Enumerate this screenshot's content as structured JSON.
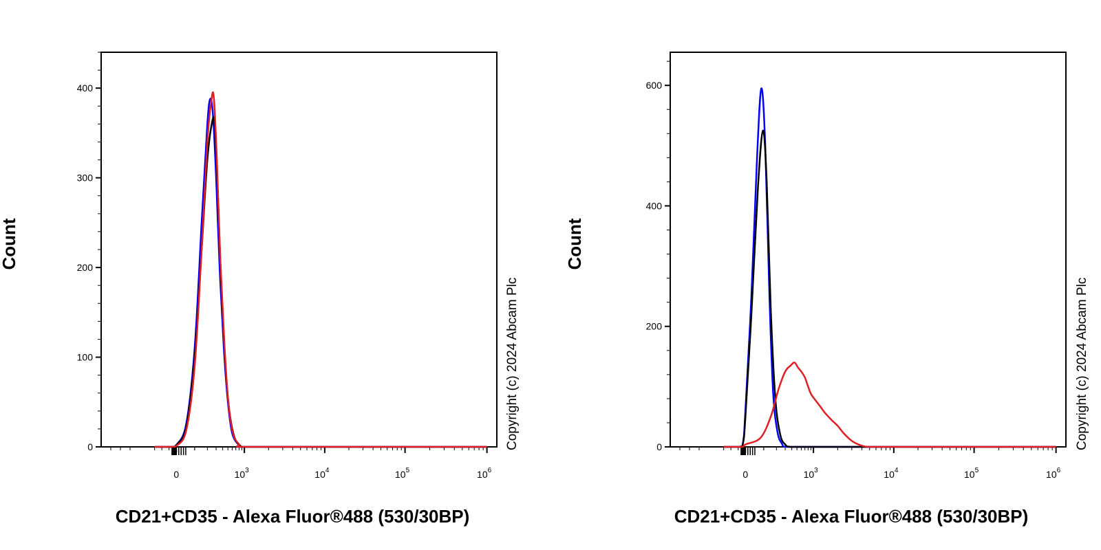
{
  "colors": {
    "isotype": "#0000ff",
    "unstained": "#000000",
    "stained": "#e01e24",
    "frame": "#000000"
  },
  "chart_data": [
    {
      "type": "line",
      "xlabel": "CD21+CD35 - Alexa Fluor®488 (530/30BP)",
      "ylabel": "Count",
      "watermark": "Copyright (c) 2024 Abcam Plc",
      "x_scale": "biexponential",
      "xlim": [
        -300,
        1000000
      ],
      "ylim": [
        0,
        440
      ],
      "x_ticks": [
        {
          "value": 0,
          "label": "0",
          "sup": ""
        },
        {
          "value": 1000,
          "label": "10",
          "sup": "3"
        },
        {
          "value": 10000,
          "label": "10",
          "sup": "4"
        },
        {
          "value": 100000,
          "label": "10",
          "sup": "5"
        },
        {
          "value": 1000000,
          "label": "10",
          "sup": "6"
        }
      ],
      "y_ticks": [
        {
          "value": 0,
          "label": "0"
        },
        {
          "value": 100,
          "label": "100"
        },
        {
          "value": 200,
          "label": "200"
        },
        {
          "value": 300,
          "label": "300"
        },
        {
          "value": 400,
          "label": "400"
        }
      ],
      "series": [
        {
          "color_key": "isotype",
          "points": [
            [
              -300,
              0
            ],
            [
              -50,
              0
            ],
            [
              0,
              2
            ],
            [
              50,
              25
            ],
            [
              100,
              110
            ],
            [
              150,
              250
            ],
            [
              200,
              360
            ],
            [
              230,
              388
            ],
            [
              260,
              370
            ],
            [
              300,
              300
            ],
            [
              350,
              200
            ],
            [
              420,
              110
            ],
            [
              500,
              50
            ],
            [
              600,
              15
            ],
            [
              800,
              2
            ],
            [
              1000,
              0
            ],
            [
              10000,
              0
            ],
            [
              1000000,
              0
            ]
          ]
        },
        {
          "color_key": "unstained",
          "points": [
            [
              -300,
              0
            ],
            [
              -50,
              0
            ],
            [
              0,
              2
            ],
            [
              50,
              22
            ],
            [
              100,
              100
            ],
            [
              150,
              220
            ],
            [
              200,
              320
            ],
            [
              250,
              362
            ],
            [
              280,
              360
            ],
            [
              320,
              290
            ],
            [
              370,
              190
            ],
            [
              440,
              100
            ],
            [
              520,
              45
            ],
            [
              650,
              12
            ],
            [
              850,
              1
            ],
            [
              1000,
              0
            ],
            [
              10000,
              0
            ],
            [
              1000000,
              0
            ]
          ]
        },
        {
          "color_key": "stained",
          "points": [
            [
              -300,
              0
            ],
            [
              -50,
              0
            ],
            [
              0,
              1
            ],
            [
              50,
              18
            ],
            [
              100,
              90
            ],
            [
              150,
              220
            ],
            [
              200,
              340
            ],
            [
              240,
              385
            ],
            [
              270,
              390
            ],
            [
              310,
              320
            ],
            [
              360,
              210
            ],
            [
              430,
              115
            ],
            [
              510,
              50
            ],
            [
              620,
              15
            ],
            [
              800,
              3
            ],
            [
              1000,
              0
            ],
            [
              10000,
              0
            ],
            [
              1000000,
              0
            ]
          ]
        }
      ]
    },
    {
      "type": "line",
      "xlabel": "CD21+CD35 - Alexa Fluor®488 (530/30BP)",
      "ylabel": "Count",
      "watermark": "Copyright (c) 2024 Abcam Plc",
      "x_scale": "biexponential",
      "xlim": [
        -300,
        1000000
      ],
      "ylim": [
        0,
        655
      ],
      "x_ticks": [
        {
          "value": 0,
          "label": "0",
          "sup": ""
        },
        {
          "value": 1000,
          "label": "10",
          "sup": "3"
        },
        {
          "value": 10000,
          "label": "10",
          "sup": "4"
        },
        {
          "value": 100000,
          "label": "10",
          "sup": "5"
        },
        {
          "value": 1000000,
          "label": "10",
          "sup": "6"
        }
      ],
      "y_ticks": [
        {
          "value": 0,
          "label": "0"
        },
        {
          "value": 200,
          "label": "200"
        },
        {
          "value": 400,
          "label": "400"
        },
        {
          "value": 600,
          "label": "600"
        }
      ],
      "series": [
        {
          "color_key": "isotype",
          "points": [
            [
              -300,
              0
            ],
            [
              -80,
              0
            ],
            [
              -30,
              10
            ],
            [
              0,
              60
            ],
            [
              30,
              250
            ],
            [
              60,
              480
            ],
            [
              85,
              595
            ],
            [
              110,
              500
            ],
            [
              140,
              250
            ],
            [
              170,
              90
            ],
            [
              210,
              25
            ],
            [
              260,
              5
            ],
            [
              320,
              0
            ],
            [
              1000,
              0
            ],
            [
              10000,
              0
            ],
            [
              1000000,
              0
            ]
          ]
        },
        {
          "color_key": "unstained",
          "points": [
            [
              -300,
              0
            ],
            [
              -80,
              0
            ],
            [
              -30,
              8
            ],
            [
              0,
              50
            ],
            [
              30,
              220
            ],
            [
              65,
              430
            ],
            [
              95,
              525
            ],
            [
              120,
              440
            ],
            [
              150,
              230
            ],
            [
              190,
              80
            ],
            [
              240,
              20
            ],
            [
              300,
              4
            ],
            [
              380,
              0
            ],
            [
              1000,
              0
            ],
            [
              10000,
              0
            ],
            [
              1000000,
              0
            ]
          ]
        },
        {
          "color_key": "stained",
          "points": [
            [
              -300,
              0
            ],
            [
              -50,
              0
            ],
            [
              0,
              4
            ],
            [
              80,
              15
            ],
            [
              150,
              50
            ],
            [
              220,
              95
            ],
            [
              300,
              125
            ],
            [
              380,
              135
            ],
            [
              450,
              140
            ],
            [
              520,
              132
            ],
            [
              600,
              125
            ],
            [
              700,
              115
            ],
            [
              800,
              100
            ],
            [
              900,
              88
            ],
            [
              1050,
              78
            ],
            [
              1200,
              68
            ],
            [
              1400,
              56
            ],
            [
              1700,
              44
            ],
            [
              2000,
              35
            ],
            [
              2400,
              22
            ],
            [
              3000,
              10
            ],
            [
              3800,
              3
            ],
            [
              5000,
              0
            ],
            [
              10000,
              0
            ],
            [
              1000000,
              0
            ]
          ]
        }
      ]
    }
  ]
}
